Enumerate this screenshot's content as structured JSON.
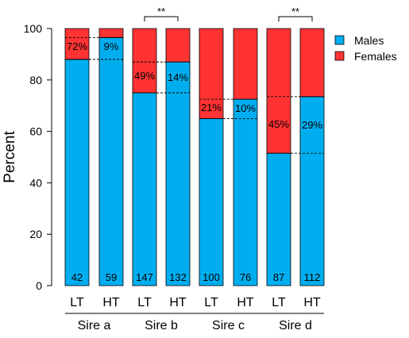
{
  "chart_data": {
    "type": "bar",
    "stacked": true,
    "ylabel": "Percent",
    "ylim": [
      0,
      100
    ],
    "yticks": [
      0,
      20,
      40,
      60,
      80,
      100
    ],
    "categories": [
      "LT",
      "HT",
      "LT",
      "HT",
      "LT",
      "HT",
      "LT",
      "HT"
    ],
    "groups": [
      {
        "label": "Sire a",
        "bars": [
          0,
          1
        ]
      },
      {
        "label": "Sire b",
        "bars": [
          2,
          3
        ]
      },
      {
        "label": "Sire c",
        "bars": [
          4,
          5
        ]
      },
      {
        "label": "Sire d",
        "bars": [
          6,
          7
        ]
      }
    ],
    "series": [
      {
        "name": "Males",
        "color": "#00AEEF",
        "values": [
          88,
          96.5,
          75,
          87,
          65,
          72.5,
          51.5,
          73.5
        ]
      },
      {
        "name": "Females",
        "color": "#FF3333",
        "values": [
          12,
          3.5,
          25,
          13,
          35,
          27.5,
          48.5,
          26.5
        ]
      }
    ],
    "percent_labels": [
      "72%",
      "9%",
      "49%",
      "14%",
      "21%",
      "10%",
      "45%",
      "29%"
    ],
    "n_labels": [
      "42",
      "59",
      "147",
      "132",
      "100",
      "76",
      "87",
      "112"
    ],
    "significance": [
      {
        "bars": [
          2,
          3
        ],
        "label": "**"
      },
      {
        "bars": [
          6,
          7
        ],
        "label": "**"
      }
    ],
    "legend_position": "top-right",
    "grid": false
  }
}
